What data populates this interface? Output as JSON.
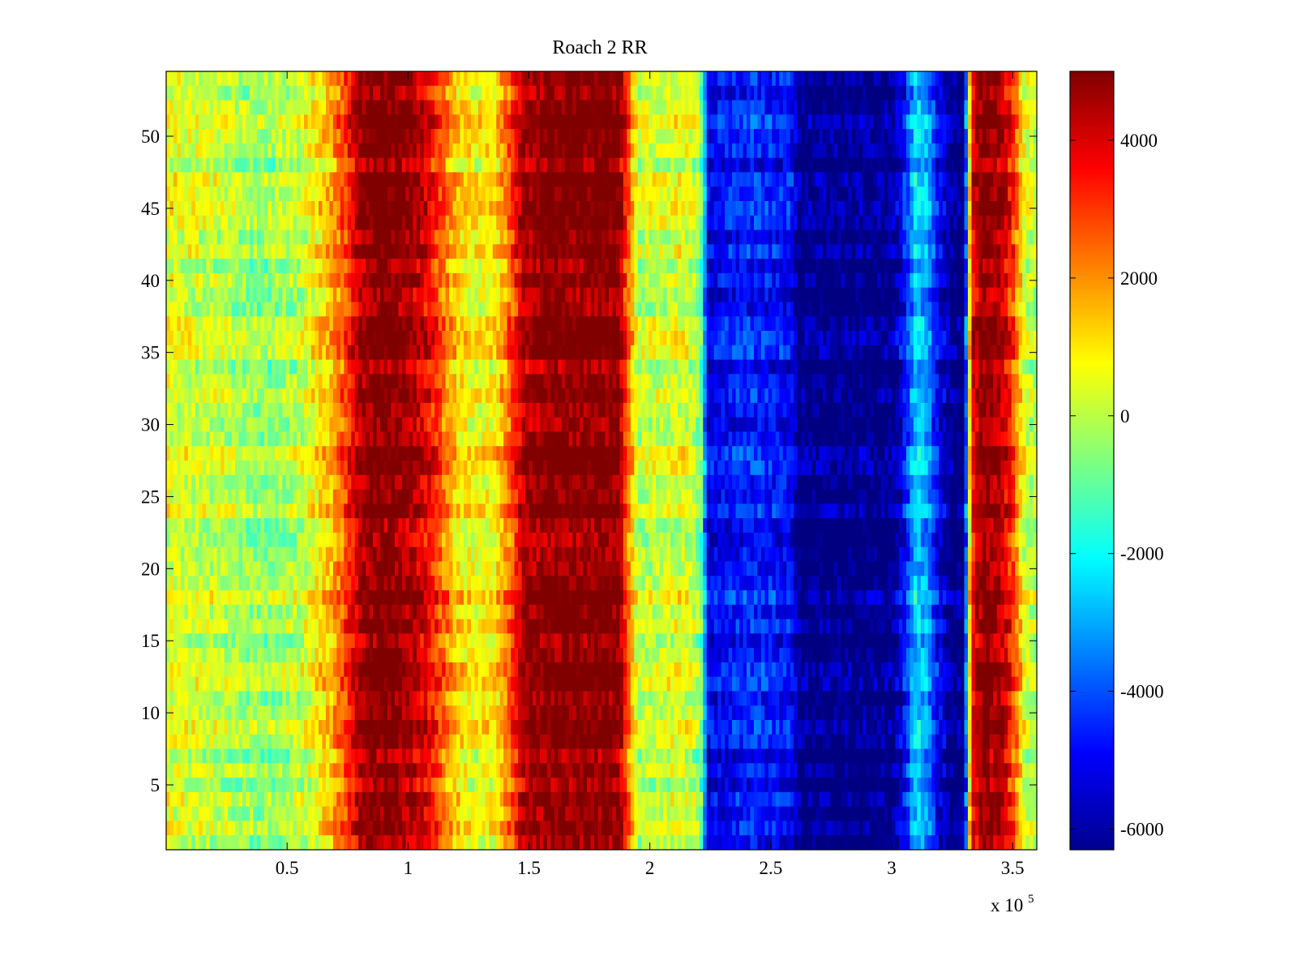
{
  "chart_data": {
    "type": "heatmap",
    "title": "Roach 2 RR",
    "xlabel": "",
    "ylabel": "",
    "x_multiplier_label": {
      "base": "x 10",
      "exponent": "5"
    },
    "xlim": [
      0,
      3.6
    ],
    "x_scale": 100000,
    "ylim": [
      0.5,
      54.5
    ],
    "rows": 54,
    "x_ticks": [
      0.5,
      1,
      1.5,
      2,
      2.5,
      3,
      3.5
    ],
    "x_tick_labels": [
      "0.5",
      "1",
      "1.5",
      "2",
      "2.5",
      "3",
      "3.5"
    ],
    "y_ticks": [
      5,
      10,
      15,
      20,
      25,
      30,
      35,
      40,
      45,
      50
    ],
    "y_tick_labels": [
      "5",
      "10",
      "15",
      "20",
      "25",
      "30",
      "35",
      "40",
      "45",
      "50"
    ],
    "colorbar": {
      "colormap": "jet",
      "clim": [
        -6300,
        5000
      ],
      "ticks": [
        -6000,
        -4000,
        -2000,
        0,
        2000,
        4000
      ],
      "tick_labels": [
        "-6000",
        "-4000",
        "-2000",
        "0",
        "2000",
        "4000"
      ]
    },
    "column_profile": {
      "x": [
        0.0,
        0.05,
        0.25,
        0.4,
        0.55,
        0.68,
        0.75,
        0.8,
        0.85,
        0.95,
        1.05,
        1.12,
        1.2,
        1.28,
        1.36,
        1.42,
        1.48,
        1.6,
        1.75,
        1.87,
        1.91,
        1.95,
        2.05,
        2.15,
        2.21,
        2.24,
        2.4,
        2.58,
        2.62,
        2.8,
        3.0,
        3.05,
        3.1,
        3.15,
        3.19,
        3.25,
        3.3,
        3.33,
        3.38,
        3.45,
        3.5,
        3.55,
        3.6
      ],
      "values": [
        600,
        300,
        0,
        -500,
        0,
        1500,
        3000,
        4500,
        5000,
        5000,
        4200,
        3000,
        1200,
        600,
        900,
        2500,
        4500,
        5000,
        5000,
        5000,
        2500,
        0,
        200,
        400,
        -500,
        -5200,
        -4600,
        -4800,
        -6300,
        -6300,
        -6300,
        -5000,
        -2500,
        -3200,
        -5000,
        -6300,
        -6300,
        3500,
        5000,
        4500,
        3000,
        300,
        -200
      ]
    }
  }
}
